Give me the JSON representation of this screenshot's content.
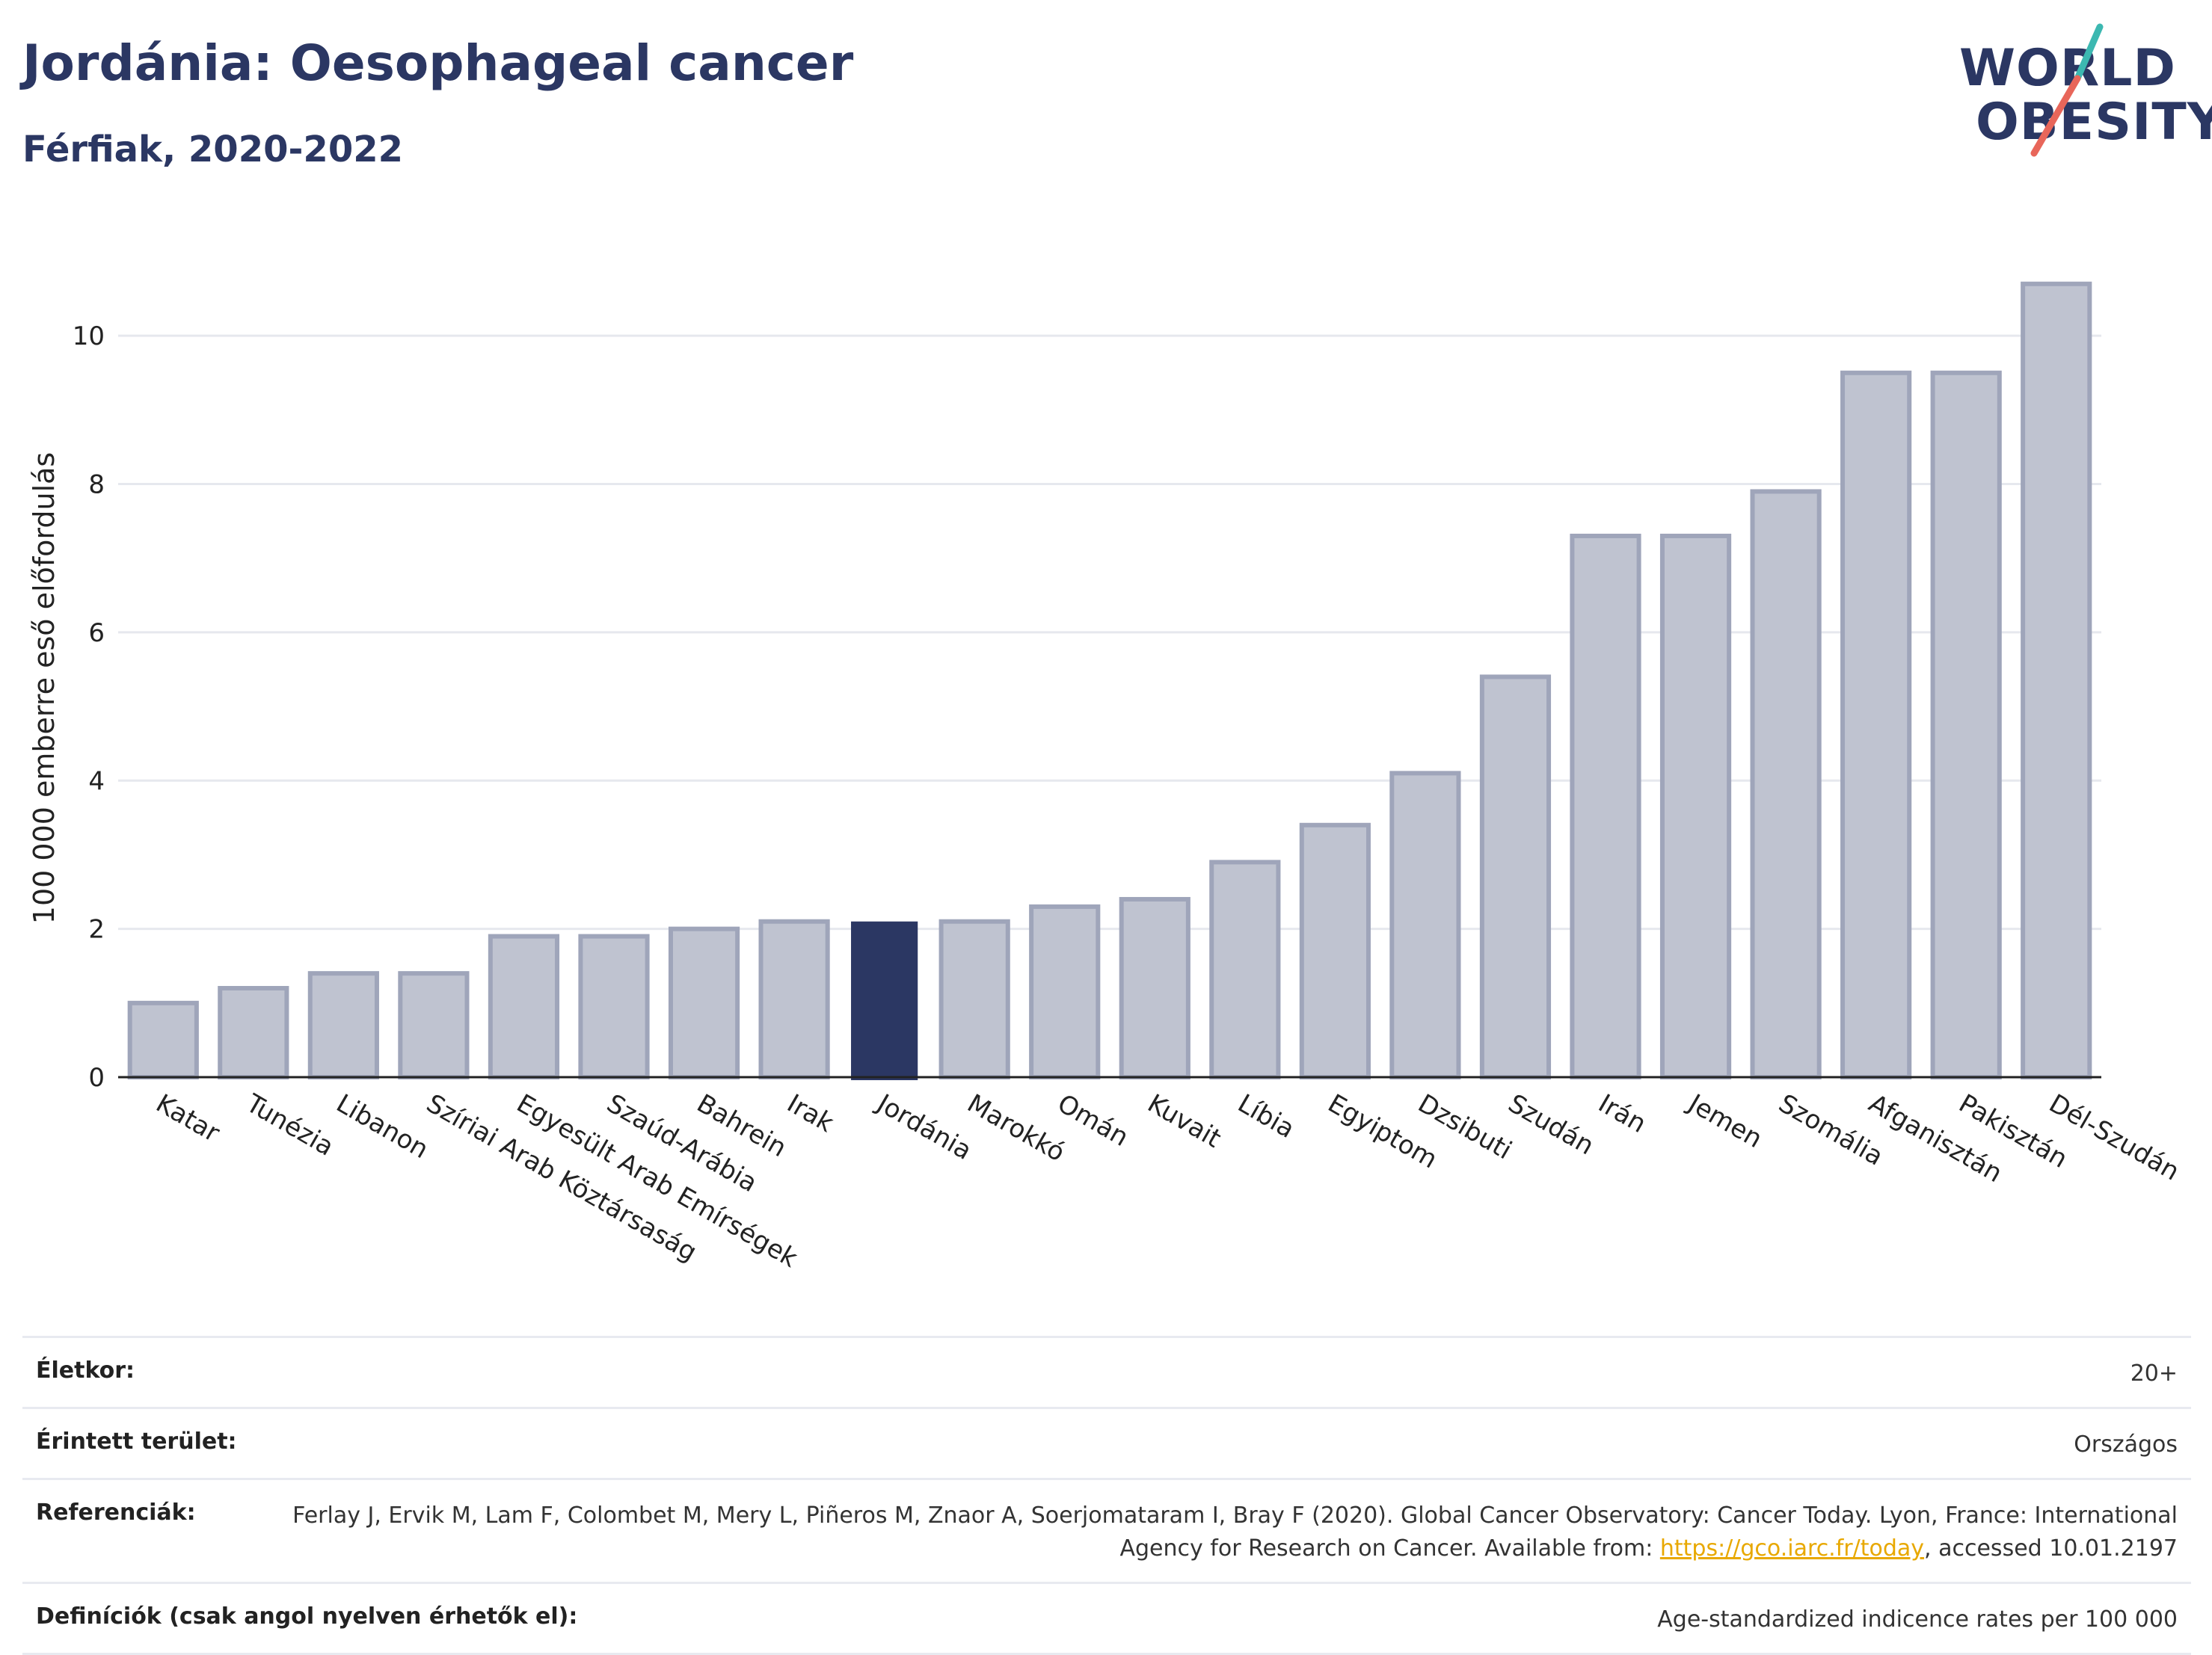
{
  "header": {
    "title": "Jordánia: Oesophageal cancer",
    "subtitle": "Férfiak, 2020-2022"
  },
  "logo": {
    "line1": "WORLD",
    "line2": "OBESITY",
    "accent_colors": [
      "#3cb8b1",
      "#e8665a"
    ]
  },
  "colors": {
    "bar_default_fill": "#bfc3d0",
    "bar_default_stroke": "#9fa5ba",
    "bar_highlight": "#2b3763",
    "grid": "#e6e8ee",
    "axis": "#222222"
  },
  "chart_data": {
    "type": "bar",
    "title": "Jordánia: Oesophageal cancer",
    "subtitle": "Férfiak, 2020-2022",
    "ylabel": "100 000 emberre eső előfordulás",
    "xlabel": "",
    "ylim": [
      0,
      11
    ],
    "yticks": [
      0,
      2,
      4,
      6,
      8,
      10
    ],
    "grid": true,
    "highlight": "Jordánia",
    "categories": [
      "Katar",
      "Tunézia",
      "Libanon",
      "Szíriai Arab Köztársaság",
      "Egyesült Arab Emírségek",
      "Szaúd-Arábia",
      "Bahrein",
      "Irak",
      "Jordánia",
      "Marokkó",
      "Omán",
      "Kuvait",
      "Líbia",
      "Egyiptom",
      "Dzsibuti",
      "Szudán",
      "Irán",
      "Jemen",
      "Szomália",
      "Afganisztán",
      "Pakisztán",
      "Dél-Szudán"
    ],
    "values": [
      1.0,
      1.2,
      1.4,
      1.4,
      1.9,
      1.9,
      2.0,
      2.1,
      2.1,
      2.1,
      2.3,
      2.4,
      2.9,
      3.4,
      4.1,
      5.4,
      7.3,
      7.3,
      7.9,
      9.5,
      9.5,
      10.7
    ]
  },
  "info": [
    {
      "label": "Életkor:",
      "value": "20+"
    },
    {
      "label": "Érintett terület:",
      "value": "Országos"
    },
    {
      "label": "Referenciák:",
      "value_pre": "Ferlay J, Ervik M, Lam F, Colombet M, Mery L, Piñeros M, Znaor A, Soerjomataram I, Bray F (2020). Global Cancer Observatory: Cancer Today. Lyon, France: International Agency for Research on Cancer. Available from: ",
      "link": "https://gco.iarc.fr/today",
      "value_post": ", accessed 10.01.2197"
    },
    {
      "label": "Definíciók (csak angol nyelven érhetők el):",
      "value": "Age-standardized indicence rates per 100 000"
    }
  ]
}
